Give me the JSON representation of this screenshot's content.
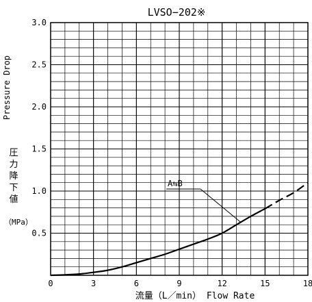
{
  "chart_data": {
    "type": "line",
    "title": "LVSO−202※",
    "xlabel": "流量（L／min） Flow Rate",
    "ylabel_en": "Pressure Drop",
    "ylabel_jp": [
      "圧",
      "力",
      "降",
      "下",
      "値"
    ],
    "yunit": "（MPa）",
    "xlim": [
      0,
      18
    ],
    "ylim": [
      0,
      3.0
    ],
    "xticks": [
      0,
      3,
      6,
      9,
      12,
      15,
      18
    ],
    "xtick_labels": [
      "0",
      "3",
      "6",
      "9",
      "12",
      "15",
      "18"
    ],
    "yticks": [
      0.5,
      1.0,
      1.5,
      2.0,
      2.5,
      3.0
    ],
    "ytick_labels": [
      "0.5",
      "1.0",
      "1.5",
      "2.0",
      "2.5",
      "3.0"
    ],
    "grid": true,
    "x_minor_step": 1,
    "y_minor_step": 0.1,
    "series": [
      {
        "name": "A⇆B",
        "x": [
          0,
          1,
          2,
          3,
          4,
          5,
          6,
          7,
          8,
          9,
          10,
          11,
          12,
          13,
          14,
          15
        ],
        "y": [
          0,
          0.005,
          0.015,
          0.035,
          0.06,
          0.1,
          0.15,
          0.2,
          0.25,
          0.31,
          0.37,
          0.43,
          0.5,
          0.6,
          0.7,
          0.79
        ],
        "line_style": "solid"
      },
      {
        "name": "",
        "x": [
          15,
          16,
          17,
          18
        ],
        "y": [
          0.79,
          0.89,
          0.98,
          1.1
        ],
        "line_style": "dashed"
      }
    ],
    "annotation": {
      "text": "A⇆B",
      "points_to": {
        "x": 13.3,
        "y": 0.63
      }
    }
  }
}
